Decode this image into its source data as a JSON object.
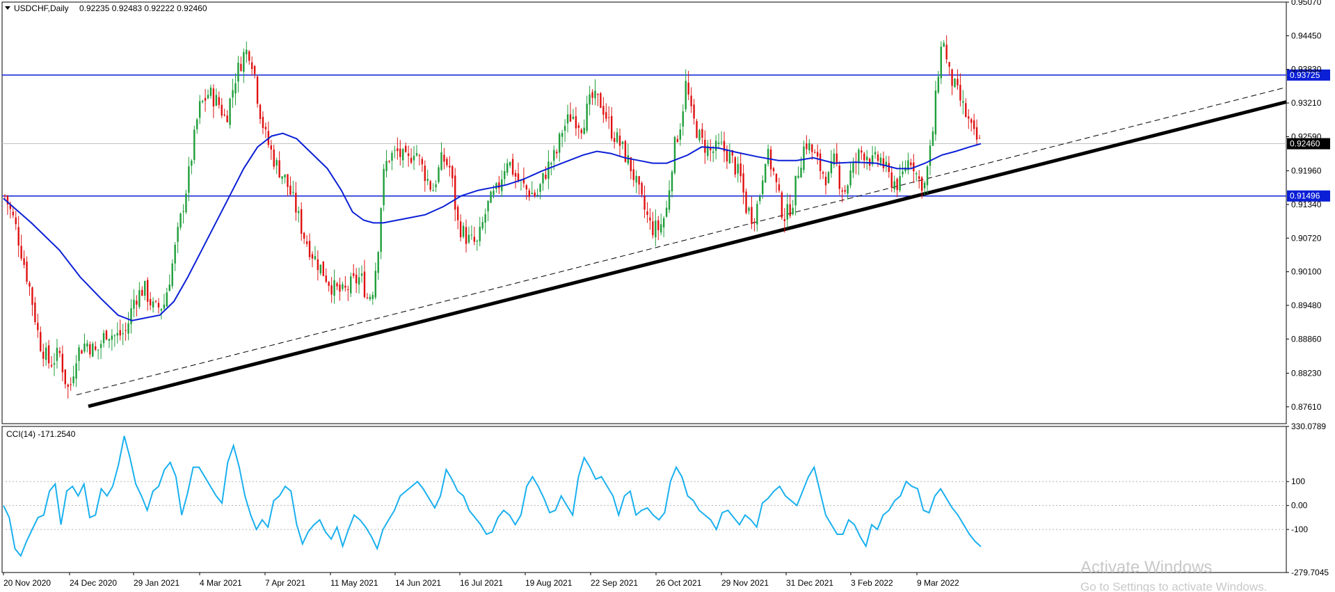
{
  "header": {
    "symbol": "USDCHF,Daily",
    "ohlc": "0.92235 0.92483 0.92222 0.92460"
  },
  "watermark": {
    "line1": "Activate Windows",
    "line2": "Go to Settings to activate Windows."
  },
  "colors": {
    "bull": "#1e9e3a",
    "bear": "#e01010",
    "ma": "#0a1fd6",
    "level_line": "#0a1fd6",
    "trendline": "#000000",
    "cci": "#1ab0ef",
    "price_tag_bg": "#000000",
    "level_tag_bg": "#0a1fd6"
  },
  "chart_data": [
    {
      "type": "candlestick",
      "title": "USDCHF,Daily",
      "ylim": [
        0.873,
        0.9507
      ],
      "y_ticks": [
        "0.95070",
        "0.94450",
        "0.93830",
        "0.93210",
        "0.92590",
        "0.91960",
        "0.91340",
        "0.90720",
        "0.90100",
        "0.89480",
        "0.88860",
        "0.88230",
        "0.87610"
      ],
      "x_ticks": [
        "20 Nov 2020",
        "24 Dec 2020",
        "29 Jan 2021",
        "4 Mar 2021",
        "7 Apr 2021",
        "11 May 2021",
        "14 Jun 2021",
        "16 Jul 2021",
        "19 Aug 2021",
        "22 Sep 2021",
        "26 Oct 2021",
        "29 Nov 2021",
        "31 Dec 2021",
        "3 Feb 2022",
        "9 Mar 2022"
      ],
      "bars_count": 356,
      "close_path": [
        [
          0,
          0.915
        ],
        [
          10,
          0.91
        ],
        [
          25,
          0.898
        ],
        [
          35,
          0.888
        ],
        [
          45,
          0.884
        ],
        [
          55,
          0.886
        ],
        [
          62,
          0.88
        ],
        [
          65,
          0.879
        ],
        [
          72,
          0.886
        ],
        [
          82,
          0.888
        ],
        [
          92,
          0.886
        ],
        [
          102,
          0.89
        ],
        [
          112,
          0.889
        ],
        [
          122,
          0.89
        ],
        [
          130,
          0.896
        ],
        [
          140,
          0.898
        ],
        [
          150,
          0.894
        ],
        [
          160,
          0.895
        ],
        [
          168,
          0.902
        ],
        [
          175,
          0.909
        ],
        [
          185,
          0.919
        ],
        [
          195,
          0.931
        ],
        [
          205,
          0.934
        ],
        [
          215,
          0.932
        ],
        [
          222,
          0.929
        ],
        [
          232,
          0.937
        ],
        [
          240,
          0.941
        ],
        [
          245,
          0.942
        ],
        [
          250,
          0.939
        ],
        [
          255,
          0.932
        ],
        [
          262,
          0.926
        ],
        [
          272,
          0.921
        ],
        [
          282,
          0.918
        ],
        [
          292,
          0.913
        ],
        [
          300,
          0.908
        ],
        [
          310,
          0.904
        ],
        [
          320,
          0.901
        ],
        [
          330,
          0.898
        ],
        [
          340,
          0.897
        ],
        [
          350,
          0.899
        ],
        [
          358,
          0.9
        ],
        [
          365,
          0.896
        ],
        [
          370,
          0.898
        ],
        [
          375,
          0.905
        ],
        [
          380,
          0.918
        ],
        [
          385,
          0.922
        ],
        [
          395,
          0.923
        ],
        [
          405,
          0.921
        ],
        [
          412,
          0.924
        ],
        [
          420,
          0.92
        ],
        [
          430,
          0.916
        ],
        [
          440,
          0.922
        ],
        [
          448,
          0.92
        ],
        [
          455,
          0.91
        ],
        [
          465,
          0.907
        ],
        [
          475,
          0.906
        ],
        [
          485,
          0.913
        ],
        [
          495,
          0.916
        ],
        [
          505,
          0.922
        ],
        [
          515,
          0.918
        ],
        [
          525,
          0.916
        ],
        [
          535,
          0.915
        ],
        [
          545,
          0.92
        ],
        [
          555,
          0.923
        ],
        [
          560,
          0.927
        ],
        [
          570,
          0.93
        ],
        [
          580,
          0.928
        ],
        [
          590,
          0.933
        ],
        [
          600,
          0.932
        ],
        [
          610,
          0.927
        ],
        [
          620,
          0.924
        ],
        [
          630,
          0.92
        ],
        [
          640,
          0.914
        ],
        [
          650,
          0.909
        ],
        [
          658,
          0.909
        ],
        [
          665,
          0.912
        ],
        [
          672,
          0.923
        ],
        [
          680,
          0.929
        ],
        [
          685,
          0.936
        ],
        [
          690,
          0.93
        ],
        [
          700,
          0.925
        ],
        [
          710,
          0.923
        ],
        [
          720,
          0.924
        ],
        [
          730,
          0.922
        ],
        [
          740,
          0.918
        ],
        [
          745,
          0.913
        ],
        [
          752,
          0.911
        ],
        [
          758,
          0.914
        ],
        [
          765,
          0.923
        ],
        [
          772,
          0.92
        ],
        [
          780,
          0.913
        ],
        [
          785,
          0.911
        ],
        [
          792,
          0.914
        ],
        [
          798,
          0.92
        ],
        [
          805,
          0.925
        ],
        [
          812,
          0.923
        ],
        [
          820,
          0.92
        ],
        [
          828,
          0.918
        ],
        [
          835,
          0.922
        ],
        [
          840,
          0.917
        ],
        [
          845,
          0.916
        ],
        [
          850,
          0.919
        ],
        [
          855,
          0.921
        ],
        [
          860,
          0.923
        ],
        [
          866,
          0.923
        ],
        [
          872,
          0.921
        ],
        [
          880,
          0.922
        ],
        [
          890,
          0.918
        ],
        [
          900,
          0.917
        ],
        [
          906,
          0.921
        ],
        [
          912,
          0.922
        ],
        [
          918,
          0.918
        ],
        [
          925,
          0.917
        ],
        [
          932,
          0.925
        ],
        [
          936,
          0.933
        ],
        [
          940,
          0.941
        ],
        [
          944,
          0.944
        ],
        [
          948,
          0.938
        ],
        [
          955,
          0.935
        ],
        [
          962,
          0.932
        ],
        [
          968,
          0.929
        ],
        [
          974,
          0.926
        ],
        [
          980,
          0.9246
        ]
      ],
      "moving_average": [
        [
          0,
          0.9145
        ],
        [
          20,
          0.91
        ],
        [
          40,
          0.905
        ],
        [
          55,
          0.9
        ],
        [
          70,
          0.896
        ],
        [
          82,
          0.893
        ],
        [
          92,
          0.892
        ],
        [
          102,
          0.8925
        ],
        [
          112,
          0.893
        ],
        [
          122,
          0.8955
        ],
        [
          132,
          0.9
        ],
        [
          142,
          0.905
        ],
        [
          152,
          0.91
        ],
        [
          162,
          0.915
        ],
        [
          172,
          0.92
        ],
        [
          182,
          0.924
        ],
        [
          192,
          0.926
        ],
        [
          200,
          0.9265
        ],
        [
          210,
          0.9255
        ],
        [
          220,
          0.923
        ],
        [
          232,
          0.92
        ],
        [
          242,
          0.916
        ],
        [
          250,
          0.912
        ],
        [
          258,
          0.9105
        ],
        [
          265,
          0.91
        ],
        [
          272,
          0.91
        ],
        [
          282,
          0.9105
        ],
        [
          292,
          0.911
        ],
        [
          302,
          0.9115
        ],
        [
          315,
          0.913
        ],
        [
          328,
          0.915
        ],
        [
          340,
          0.916
        ],
        [
          350,
          0.9165
        ],
        [
          360,
          0.917
        ],
        [
          372,
          0.918
        ],
        [
          385,
          0.9195
        ],
        [
          400,
          0.921
        ],
        [
          415,
          0.9225
        ],
        [
          425,
          0.9232
        ],
        [
          435,
          0.9228
        ],
        [
          445,
          0.922
        ],
        [
          455,
          0.9215
        ],
        [
          465,
          0.921
        ],
        [
          475,
          0.921
        ],
        [
          490,
          0.9225
        ],
        [
          500,
          0.924
        ],
        [
          512,
          0.9238
        ],
        [
          525,
          0.923
        ],
        [
          540,
          0.9222
        ],
        [
          555,
          0.9215
        ],
        [
          568,
          0.9215
        ],
        [
          580,
          0.922
        ],
        [
          595,
          0.921
        ],
        [
          610,
          0.9212
        ],
        [
          625,
          0.921
        ],
        [
          640,
          0.92
        ],
        [
          650,
          0.92
        ],
        [
          660,
          0.921
        ],
        [
          672,
          0.9225
        ],
        [
          682,
          0.9232
        ],
        [
          692,
          0.924
        ],
        [
          700,
          0.9246
        ]
      ],
      "horizontal_levels": [
        {
          "label": "0.93725",
          "value": 0.93725
        },
        {
          "label": "0.91496",
          "value": 0.91496
        }
      ],
      "last_price_label": "0.92460",
      "last_price": 0.9246,
      "trendlines": [
        {
          "style": "solid-thick",
          "from": [
            0.8762,
            "24 Dec 2020"
          ],
          "to": [
            0.9323,
            "right-edge"
          ]
        },
        {
          "style": "dashed",
          "from": [
            0.8783,
            "24 Dec 2020"
          ],
          "to": [
            0.935,
            "right-edge"
          ]
        }
      ]
    },
    {
      "type": "line",
      "title": "CCI(14) -171.2540",
      "ylim": [
        -279.7045,
        330.0789
      ],
      "y_ticks": [
        "330.0789",
        "100",
        "0.00",
        "-100",
        "-279.7045"
      ],
      "levels": [
        100,
        0,
        -100
      ],
      "series": [
        {
          "values": [
            0,
            -50,
            -180,
            -210,
            -150,
            -100,
            -50,
            -40,
            60,
            90,
            -80,
            60,
            80,
            40,
            90,
            -50,
            -40,
            70,
            40,
            80,
            170,
            290,
            200,
            90,
            40,
            -20,
            60,
            80,
            150,
            180,
            120,
            -40,
            50,
            160,
            160,
            120,
            80,
            40,
            10,
            180,
            250,
            160,
            40,
            -40,
            -100,
            -60,
            -90,
            20,
            40,
            80,
            60,
            -80,
            -160,
            -110,
            -80,
            -60,
            -110,
            -140,
            -90,
            -170,
            -100,
            -40,
            -60,
            -90,
            -130,
            -180,
            -100,
            -60,
            -20,
            40,
            60,
            80,
            100,
            70,
            30,
            -10,
            40,
            150,
            110,
            60,
            40,
            -20,
            -50,
            -80,
            -120,
            -110,
            -50,
            -20,
            -40,
            -80,
            -40,
            80,
            120,
            80,
            30,
            -30,
            -20,
            40,
            0,
            -40,
            120,
            200,
            160,
            110,
            120,
            80,
            40,
            -40,
            40,
            60,
            -40,
            -20,
            -10,
            -40,
            -60,
            -30,
            100,
            160,
            120,
            40,
            20,
            -20,
            -40,
            -60,
            -100,
            -30,
            -20,
            -50,
            -80,
            -40,
            -60,
            -90,
            10,
            30,
            60,
            80,
            40,
            20,
            0,
            60,
            120,
            160,
            60,
            -40,
            -80,
            -120,
            -120,
            -60,
            -80,
            -130,
            -170,
            -80,
            -100,
            -40,
            -20,
            20,
            40,
            100,
            80,
            70,
            -20,
            -30,
            40,
            70,
            30,
            -10,
            -40,
            -80,
            -120,
            -150,
            -171.254
          ]
        }
      ]
    }
  ]
}
